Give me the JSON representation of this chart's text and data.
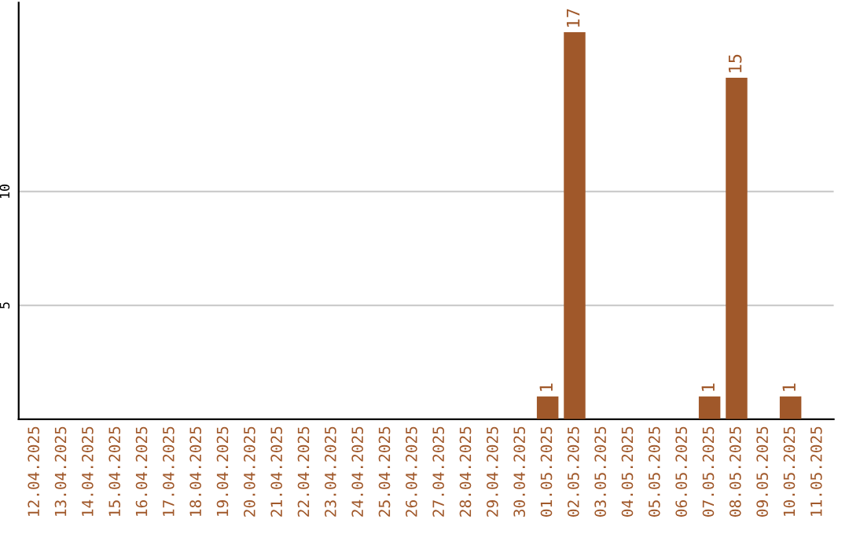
{
  "chart_data": {
    "type": "bar",
    "categories": [
      "12.04.2025",
      "13.04.2025",
      "14.04.2025",
      "15.04.2025",
      "16.04.2025",
      "17.04.2025",
      "18.04.2025",
      "19.04.2025",
      "20.04.2025",
      "21.04.2025",
      "22.04.2025",
      "23.04.2025",
      "24.04.2025",
      "25.04.2025",
      "26.04.2025",
      "27.04.2025",
      "28.04.2025",
      "29.04.2025",
      "30.04.2025",
      "01.05.2025",
      "02.05.2025",
      "03.05.2025",
      "04.05.2025",
      "05.05.2025",
      "06.05.2025",
      "07.05.2025",
      "08.05.2025",
      "09.05.2025",
      "10.05.2025",
      "11.05.2025"
    ],
    "values": [
      0,
      0,
      0,
      0,
      0,
      0,
      0,
      0,
      0,
      0,
      0,
      0,
      0,
      0,
      0,
      0,
      0,
      0,
      0,
      1,
      17,
      0,
      0,
      0,
      0,
      1,
      15,
      0,
      1,
      0
    ],
    "value_labels": [
      null,
      null,
      null,
      null,
      null,
      null,
      null,
      null,
      null,
      null,
      null,
      null,
      null,
      null,
      null,
      null,
      null,
      null,
      null,
      "1",
      "17",
      null,
      null,
      null,
      null,
      "1",
      "15",
      null,
      "1",
      null
    ],
    "color": "#a0582a",
    "ylim": [
      0,
      18.3
    ],
    "yticks": [
      5,
      10
    ],
    "grid": "y"
  }
}
